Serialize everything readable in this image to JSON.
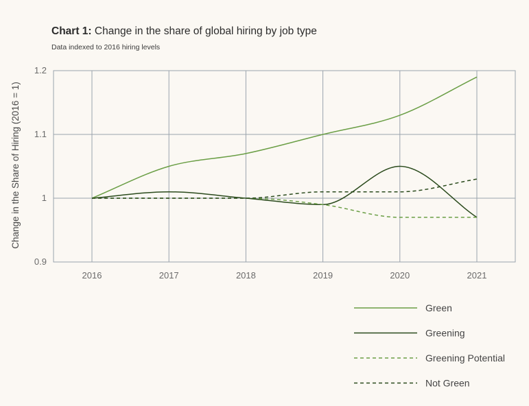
{
  "chart_data": {
    "type": "line",
    "title_bold": "Chart 1:",
    "title": "Change in the share of global hiring by job type",
    "subtitle": "Data indexed to 2016 hiring levels",
    "ylabel": "Change in the Share of Hiring (2016 = 1)",
    "xlabel": "",
    "x": [
      2016,
      2017,
      2018,
      2019,
      2020,
      2021
    ],
    "ylim": [
      0.9,
      1.2
    ],
    "yticks": [
      {
        "value": 0.9,
        "label": "0.9"
      },
      {
        "value": 1.0,
        "label": "1"
      },
      {
        "value": 1.1,
        "label": "1.1"
      },
      {
        "value": 1.2,
        "label": "1.2"
      }
    ],
    "grid": true,
    "legend_position": "bottom-right",
    "series": [
      {
        "name": "Green",
        "values": [
          1.0,
          1.05,
          1.07,
          1.1,
          1.13,
          1.19
        ],
        "color": "#6a9e45",
        "dash": "solid"
      },
      {
        "name": "Greening",
        "values": [
          1.0,
          1.01,
          1.0,
          0.99,
          1.05,
          0.97
        ],
        "color": "#2a4a1c",
        "dash": "solid"
      },
      {
        "name": "Greening Potential",
        "values": [
          1.0,
          1.0,
          1.0,
          0.99,
          0.97,
          0.97
        ],
        "color": "#6a9e45",
        "dash": "dashed"
      },
      {
        "name": "Not Green",
        "values": [
          1.0,
          1.0,
          1.0,
          1.01,
          1.01,
          1.03
        ],
        "color": "#2a4a1c",
        "dash": "dashed"
      }
    ]
  }
}
